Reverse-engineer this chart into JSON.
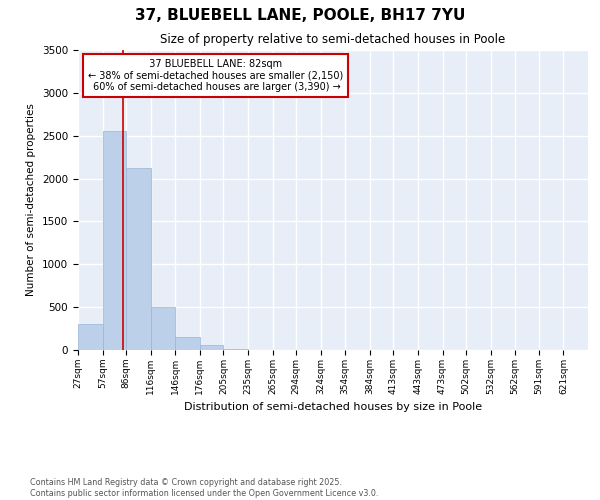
{
  "title": "37, BLUEBELL LANE, POOLE, BH17 7YU",
  "subtitle": "Size of property relative to semi-detached houses in Poole",
  "xlabel": "Distribution of semi-detached houses by size in Poole",
  "ylabel": "Number of semi-detached properties",
  "bar_color": "#bdd0e9",
  "bar_edge_color": "#9ab4d4",
  "bins": [
    27,
    57,
    86,
    116,
    146,
    176,
    205,
    235,
    265,
    294,
    324,
    354,
    384,
    413,
    443,
    473,
    502,
    532,
    562,
    591,
    621
  ],
  "values": [
    300,
    2550,
    2120,
    500,
    155,
    60,
    10,
    5,
    2,
    1,
    1,
    0,
    0,
    0,
    0,
    0,
    0,
    0,
    0,
    0,
    0
  ],
  "property_size": 82,
  "property_size_label": "37 BLUEBELL LANE: 82sqm",
  "pct_smaller": 38,
  "pct_smaller_count": 2150,
  "pct_larger": 60,
  "pct_larger_count": 3390,
  "red_line_color": "#cc0000",
  "annotation_box_color": "#cc0000",
  "ylim": [
    0,
    3500
  ],
  "yticks": [
    0,
    500,
    1000,
    1500,
    2000,
    2500,
    3000,
    3500
  ],
  "background_color": "#e8eef7",
  "grid_color": "#ffffff",
  "footer_line1": "Contains HM Land Registry data © Crown copyright and database right 2025.",
  "footer_line2": "Contains public sector information licensed under the Open Government Licence v3.0."
}
